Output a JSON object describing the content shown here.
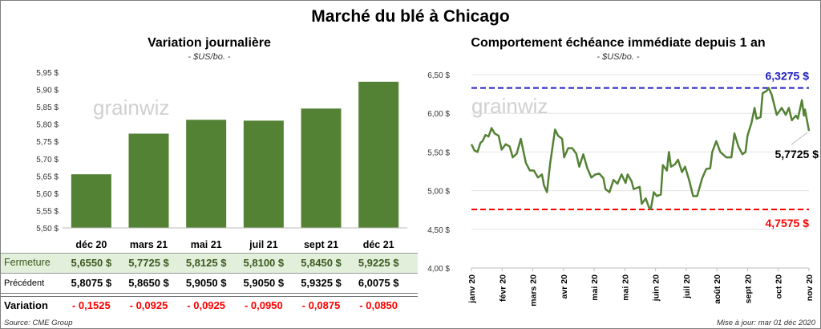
{
  "title": "Marché du blé à Chicago",
  "source": "Source: CME Group",
  "updated": "Mise à jour: mar 01 déc 2020",
  "watermark": "grainwiz",
  "colors": {
    "bar": "#548235",
    "line": "#548235",
    "high": "#1f1fbf",
    "low": "#ff0000",
    "fermeture_bg": "#e2efda",
    "variation": "#ff0000"
  },
  "table": {
    "row_labels": {
      "fermeture": "Fermeture",
      "precedent": "Précédent",
      "variation": "Variation"
    },
    "fermeture": [
      "5,6550  $",
      "5,7725  $",
      "5,8125  $",
      "5,8100  $",
      "5,8450  $",
      "5,9225  $"
    ],
    "precedent": [
      "5,8075  $",
      "5,8650  $",
      "5,9050  $",
      "5,9050  $",
      "5,9325  $",
      "6,0075  $"
    ],
    "variation": [
      "- 0,1525",
      "- 0,0925",
      "- 0,0925",
      "- 0,0950",
      "- 0,0875",
      "- 0,0850"
    ]
  },
  "chart_data": [
    {
      "type": "bar",
      "title": "Variation  journalière",
      "subtitle": "- $US/bo. -",
      "categories": [
        "déc 20",
        "mars 21",
        "mai 21",
        "juil 21",
        "sept 21",
        "déc 21"
      ],
      "values": [
        5.655,
        5.7725,
        5.8125,
        5.81,
        5.845,
        5.9225
      ],
      "ylim": [
        5.5,
        5.95
      ],
      "yticks": [
        "5,50 $",
        "5,55 $",
        "5,60 $",
        "5,65 $",
        "5,70 $",
        "5,75 $",
        "5,80 $",
        "5,85 $",
        "5,90 $",
        "5,95 $"
      ],
      "grid": false
    },
    {
      "type": "line",
      "title": "Comportement  échéance immédiate depuis 1 an",
      "subtitle": "- $US/bo. -",
      "ylim": [
        4.0,
        6.5
      ],
      "xlim": [
        "2020-01-01",
        "2020-12-01"
      ],
      "yticks": [
        "4,00 $",
        "4,50 $",
        "5,00 $",
        "5,50 $",
        "6,00 $",
        "6,50 $"
      ],
      "xticks": [
        "janv 20",
        "févr 20",
        "mars 20",
        "avr 20",
        "mai 20",
        "mai 20",
        "juin 20",
        "juil 20",
        "août 20",
        "sept 20",
        "oct 20",
        "nov 20"
      ],
      "grid": true,
      "high": {
        "value": 6.3275,
        "label": "6,3275  $"
      },
      "low": {
        "value": 4.7575,
        "label": "4,7575  $"
      },
      "last": {
        "value": 5.7725,
        "label": "5,7725 $"
      },
      "points": [
        [
          "2020-01-01",
          5.6
        ],
        [
          "2020-01-04",
          5.52
        ],
        [
          "2020-01-07",
          5.5
        ],
        [
          "2020-01-10",
          5.62
        ],
        [
          "2020-01-12",
          5.64
        ],
        [
          "2020-01-15",
          5.72
        ],
        [
          "2020-01-18",
          5.7
        ],
        [
          "2020-01-21",
          5.81
        ],
        [
          "2020-01-24",
          5.74
        ],
        [
          "2020-01-28",
          5.71
        ],
        [
          "2020-01-31",
          5.53
        ],
        [
          "2020-02-04",
          5.6
        ],
        [
          "2020-02-08",
          5.57
        ],
        [
          "2020-02-11",
          5.43
        ],
        [
          "2020-02-15",
          5.48
        ],
        [
          "2020-02-19",
          5.67
        ],
        [
          "2020-02-24",
          5.36
        ],
        [
          "2020-02-28",
          5.26
        ],
        [
          "2020-03-03",
          5.26
        ],
        [
          "2020-03-07",
          5.17
        ],
        [
          "2020-03-11",
          5.21
        ],
        [
          "2020-03-13",
          5.07
        ],
        [
          "2020-03-16",
          4.98
        ],
        [
          "2020-03-19",
          5.34
        ],
        [
          "2020-03-24",
          5.79
        ],
        [
          "2020-03-27",
          5.71
        ],
        [
          "2020-03-31",
          5.67
        ],
        [
          "2020-04-02",
          5.43
        ],
        [
          "2020-04-06",
          5.55
        ],
        [
          "2020-04-10",
          5.55
        ],
        [
          "2020-04-14",
          5.48
        ],
        [
          "2020-04-17",
          5.31
        ],
        [
          "2020-04-21",
          5.47
        ],
        [
          "2020-04-25",
          5.29
        ],
        [
          "2020-04-29",
          5.17
        ],
        [
          "2020-05-03",
          5.21
        ],
        [
          "2020-05-07",
          5.22
        ],
        [
          "2020-05-11",
          5.16
        ],
        [
          "2020-05-13",
          5.02
        ],
        [
          "2020-05-17",
          4.98
        ],
        [
          "2020-05-21",
          5.14
        ],
        [
          "2020-05-25",
          5.09
        ],
        [
          "2020-05-29",
          5.21
        ],
        [
          "2020-06-02",
          5.1
        ],
        [
          "2020-06-04",
          5.21
        ],
        [
          "2020-06-08",
          5.12
        ],
        [
          "2020-06-10",
          5.02
        ],
        [
          "2020-06-16",
          5.05
        ],
        [
          "2020-06-18",
          4.83
        ],
        [
          "2020-06-22",
          4.9
        ],
        [
          "2020-06-25",
          4.79
        ],
        [
          "2020-06-27",
          4.76
        ],
        [
          "2020-06-30",
          4.98
        ],
        [
          "2020-07-03",
          4.93
        ],
        [
          "2020-07-07",
          4.95
        ],
        [
          "2020-07-09",
          5.33
        ],
        [
          "2020-07-13",
          5.26
        ],
        [
          "2020-07-15",
          5.5
        ],
        [
          "2020-07-17",
          5.31
        ],
        [
          "2020-07-21",
          5.34
        ],
        [
          "2020-07-24",
          5.4
        ],
        [
          "2020-07-28",
          5.24
        ],
        [
          "2020-07-31",
          5.31
        ],
        [
          "2020-08-04",
          5.14
        ],
        [
          "2020-08-08",
          4.93
        ],
        [
          "2020-08-12",
          4.93
        ],
        [
          "2020-08-17",
          5.16
        ],
        [
          "2020-08-21",
          5.28
        ],
        [
          "2020-08-25",
          5.29
        ],
        [
          "2020-08-27",
          5.5
        ],
        [
          "2020-08-31",
          5.64
        ],
        [
          "2020-09-04",
          5.5
        ],
        [
          "2020-09-10",
          5.43
        ],
        [
          "2020-09-15",
          5.43
        ],
        [
          "2020-09-18",
          5.74
        ],
        [
          "2020-09-22",
          5.57
        ],
        [
          "2020-09-26",
          5.47
        ],
        [
          "2020-09-29",
          5.5
        ],
        [
          "2020-10-01",
          5.71
        ],
        [
          "2020-10-05",
          5.88
        ],
        [
          "2020-10-08",
          6.07
        ],
        [
          "2020-10-10",
          5.93
        ],
        [
          "2020-10-14",
          5.95
        ],
        [
          "2020-10-16",
          6.26
        ],
        [
          "2020-10-20",
          6.29
        ],
        [
          "2020-10-22",
          6.3275
        ],
        [
          "2020-10-25",
          6.24
        ],
        [
          "2020-10-30",
          5.98
        ],
        [
          "2020-11-04",
          6.07
        ],
        [
          "2020-11-08",
          5.98
        ],
        [
          "2020-11-11",
          6.07
        ],
        [
          "2020-11-14",
          5.91
        ],
        [
          "2020-11-18",
          5.97
        ],
        [
          "2020-11-20",
          5.93
        ],
        [
          "2020-11-24",
          6.17
        ],
        [
          "2020-11-26",
          5.97
        ],
        [
          "2020-11-27",
          6.05
        ],
        [
          "2020-12-01",
          5.7725
        ]
      ]
    }
  ]
}
